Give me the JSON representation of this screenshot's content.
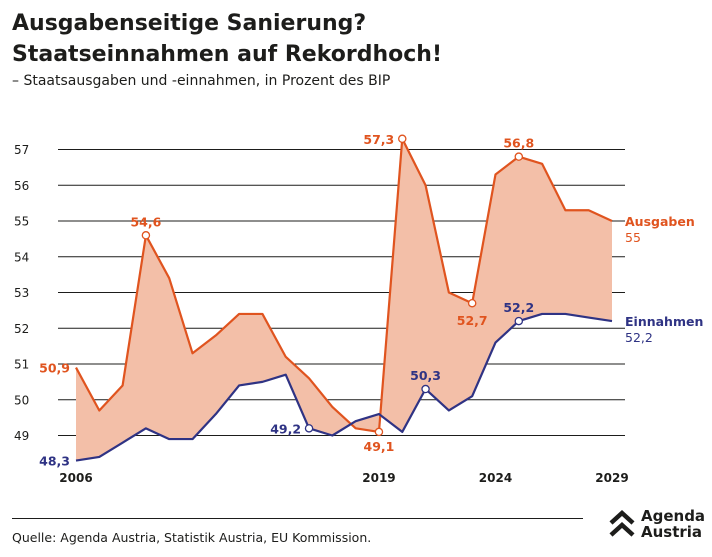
{
  "header": {
    "title_line1": "Ausgabenseitige Sanierung?",
    "title_line2": "Staatseinnahmen auf Rekordhoch!",
    "subtitle": "– Staatsausgaben und -einnahmen, in Prozent des BIP"
  },
  "footer": {
    "source": "Quelle: Agenda Austria, Statistik Austria, EU Kommission.",
    "brand_line1": "Agenda",
    "brand_line2": "Austria"
  },
  "chart_data": {
    "type": "line",
    "ylim": [
      48,
      57.5
    ],
    "yticks": [
      49,
      50,
      51,
      52,
      53,
      54,
      55,
      56,
      57
    ],
    "x": [
      2006,
      2007,
      2008,
      2009,
      2010,
      2011,
      2012,
      2013,
      2014,
      2015,
      2016,
      2017,
      2018,
      2019,
      2020,
      2021,
      2022,
      2023,
      2024,
      2025,
      2026,
      2027,
      2028,
      2029
    ],
    "xtick_labels": [
      "2006",
      "2019",
      "2024",
      "2029"
    ],
    "grid": true,
    "shade_between_series": true,
    "series": [
      {
        "name": "Ausgaben",
        "color": "#e0541f",
        "end_label": "55",
        "values": [
          50.9,
          49.7,
          50.4,
          54.6,
          53.4,
          51.3,
          51.8,
          52.4,
          52.4,
          51.2,
          50.6,
          49.8,
          49.2,
          49.1,
          57.3,
          56.0,
          53.0,
          52.7,
          56.3,
          56.8,
          56.6,
          55.3,
          55.3,
          55.0
        ],
        "annotations": [
          {
            "x": 2006,
            "label": "50,9",
            "marker": false
          },
          {
            "x": 2009,
            "label": "54,6",
            "marker": true
          },
          {
            "x": 2019,
            "label": "49,1",
            "marker": true
          },
          {
            "x": 2020,
            "label": "57,3",
            "marker": true
          },
          {
            "x": 2023,
            "label": "52,7",
            "marker": true
          },
          {
            "x": 2025,
            "label": "56,8",
            "marker": true
          }
        ]
      },
      {
        "name": "Einnahmen",
        "color": "#2f3384",
        "end_label": "52,2",
        "values": [
          48.3,
          48.4,
          48.8,
          49.2,
          48.9,
          48.9,
          49.6,
          50.4,
          50.5,
          50.7,
          49.2,
          49.0,
          49.4,
          49.6,
          49.1,
          50.3,
          49.7,
          50.1,
          51.6,
          52.2,
          52.4,
          52.4,
          52.3,
          52.2
        ],
        "annotations": [
          {
            "x": 2006,
            "label": "48,3",
            "marker": false
          },
          {
            "x": 2016,
            "label": "49,2",
            "marker": true
          },
          {
            "x": 2021,
            "label": "50,3",
            "marker": true
          },
          {
            "x": 2025,
            "label": "52,2",
            "marker": true
          }
        ]
      }
    ],
    "fill_color": "#f3bfa8"
  }
}
